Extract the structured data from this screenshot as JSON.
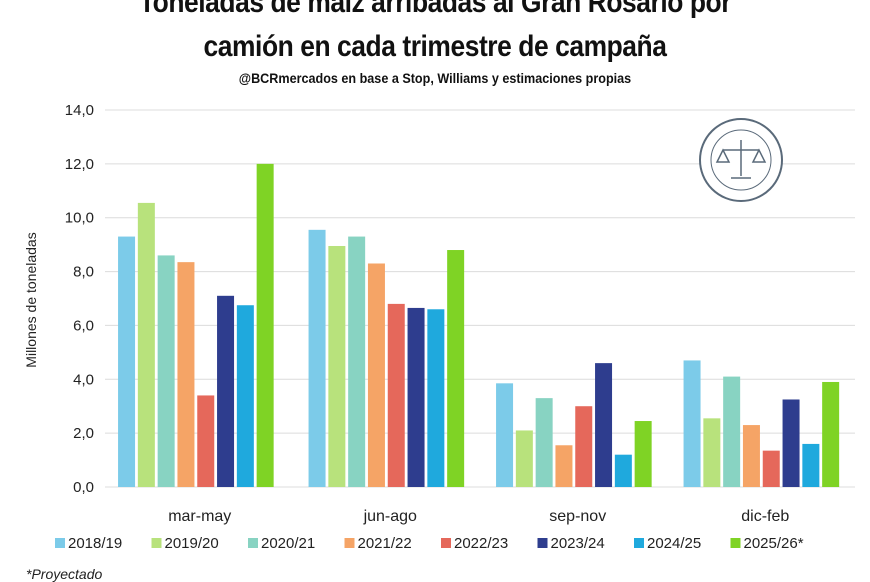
{
  "chart_data": {
    "type": "bar",
    "title_line1": "Toneladas de maíz arribadas al Gran Rosario por",
    "title_line2": "camión en cada trimestre de campaña",
    "subtitle": "@BCRmercados  en base a Stop, Williams y estimaciones propias",
    "ylabel": "Millones de toneladas",
    "xlabel": "",
    "ylim": [
      0,
      14
    ],
    "yticks": [
      "0,0",
      "2,0",
      "4,0",
      "6,0",
      "8,0",
      "10,0",
      "12,0",
      "14,0"
    ],
    "grid": true,
    "legend_position": "bottom",
    "categories": [
      "mar-may",
      "jun-ago",
      "sep-nov",
      "dic-feb"
    ],
    "series": [
      {
        "name": "2018/19",
        "color": "#7ccbe9",
        "values": [
          9.3,
          9.55,
          3.85,
          4.7
        ]
      },
      {
        "name": "2019/20",
        "color": "#b8e27c",
        "values": [
          10.55,
          8.95,
          2.1,
          2.55
        ]
      },
      {
        "name": "2020/21",
        "color": "#88d3c2",
        "values": [
          8.6,
          9.3,
          3.3,
          4.1
        ]
      },
      {
        "name": "2021/22",
        "color": "#f5a466",
        "values": [
          8.35,
          8.3,
          1.55,
          2.3
        ]
      },
      {
        "name": "2022/23",
        "color": "#e5685b",
        "values": [
          3.4,
          6.8,
          3.0,
          1.35
        ]
      },
      {
        "name": "2023/24",
        "color": "#2e3d8e",
        "values": [
          7.1,
          6.65,
          4.6,
          3.25
        ]
      },
      {
        "name": "2024/25",
        "color": "#1fa9dd",
        "values": [
          6.75,
          6.6,
          1.2,
          1.6
        ]
      },
      {
        "name": "2025/26*",
        "color": "#7fd325",
        "values": [
          12.0,
          8.8,
          2.45,
          3.9
        ]
      }
    ],
    "footnote": "*Proyectado"
  },
  "logo": {
    "text": "BOLSA DE COMERCIO DE ROSARIO"
  }
}
